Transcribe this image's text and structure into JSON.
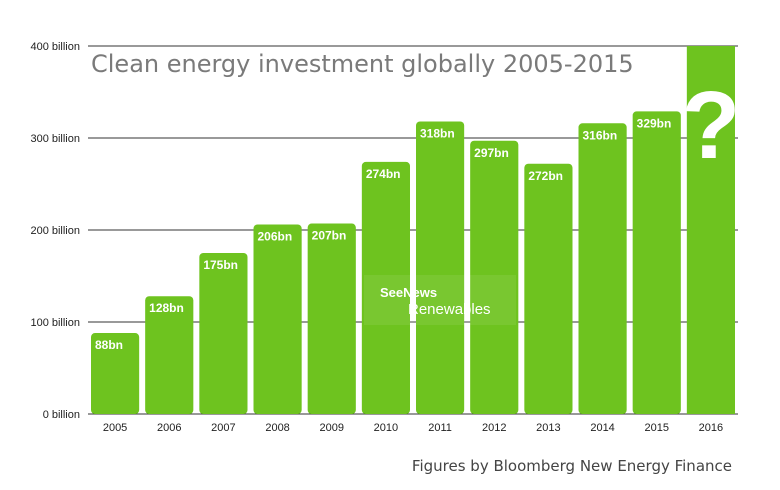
{
  "chart_data": {
    "type": "bar",
    "title": "Clean energy investment globally 2005-2015",
    "categories": [
      "2005",
      "2006",
      "2007",
      "2008",
      "2009",
      "2010",
      "2011",
      "2012",
      "2013",
      "2014",
      "2015",
      "2016"
    ],
    "values": [
      88,
      128,
      175,
      206,
      207,
      274,
      318,
      297,
      272,
      316,
      329,
      400
    ],
    "data_labels": [
      "88bn",
      "128bn",
      "175bn",
      "206bn",
      "207bn",
      "274bn",
      "318bn",
      "297bn",
      "272bn",
      "316bn",
      "329bn",
      ""
    ],
    "unknown_label": "?",
    "unknown_category": "2016",
    "ylim": [
      0,
      400
    ],
    "yticks": [
      0,
      100,
      200,
      300,
      400
    ],
    "ytick_labels": [
      "0 billion",
      "100 billion",
      "200 billion",
      "300 billion",
      "400 billion"
    ],
    "xlabel": "",
    "ylabel": "",
    "grid": true,
    "bar_color": "#6ec31f",
    "grid_color": "#333333"
  },
  "watermark": {
    "line1": "SeeNews",
    "line2": "Renewables"
  },
  "source_note": "Figures by Bloomberg New Energy Finance"
}
